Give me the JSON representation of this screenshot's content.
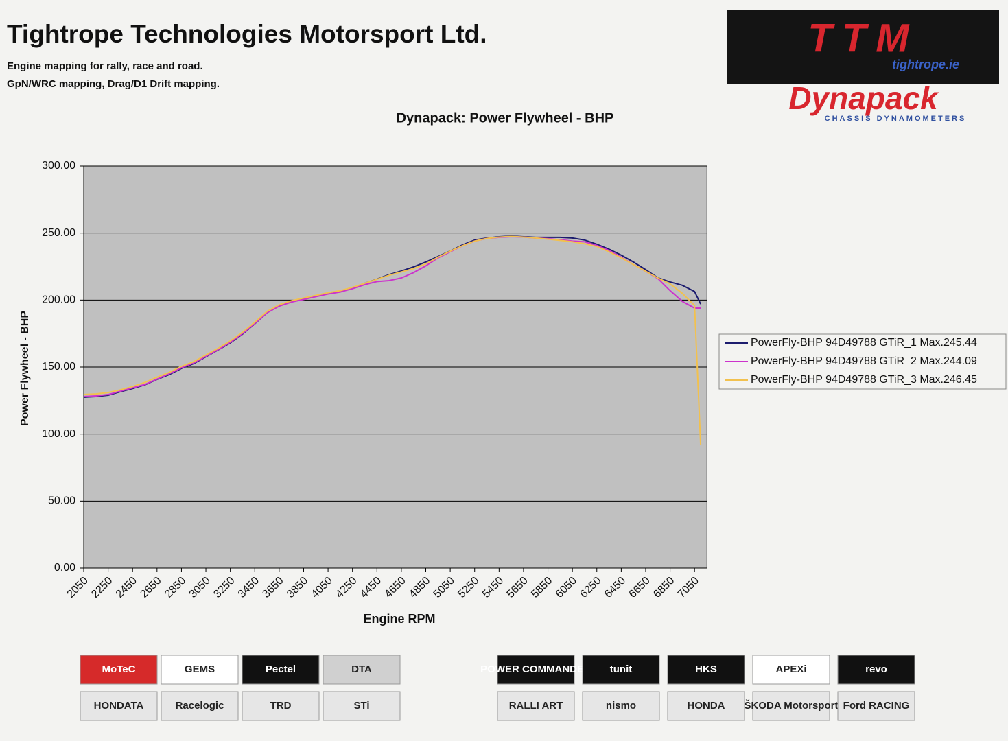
{
  "header": {
    "title": "Tightrope Technologies Motorsport Ltd.",
    "lines": [
      "Engine mapping for rally, race and road.",
      "GpN/WRC mapping, Drag/D1 Drift mapping."
    ]
  },
  "logo": {
    "brand": "TTM",
    "site": "tightrope.ie",
    "maker": "Dynapack",
    "tagline": "CHASSIS DYNAMOMETERS"
  },
  "sponsors": [
    [
      "MoTeC",
      "GEMS",
      "Pectel",
      "DTA",
      "POWER COMMANDER",
      "tunit",
      "HKS",
      "APEXi",
      "revo"
    ],
    [
      "HONDATA",
      "Racelogic",
      "TRD",
      "STi",
      "RALLI ART",
      "nismo",
      "HONDA",
      "ŠKODA Motorsport",
      "Ford RACING"
    ]
  ],
  "chart_data": {
    "type": "line",
    "title": "Dynapack: Power Flywheel - BHP",
    "x_label": "Engine RPM",
    "y_label": "Power Flywheel - BHP",
    "x": [
      2050,
      2150,
      2250,
      2350,
      2450,
      2550,
      2650,
      2750,
      2850,
      2950,
      3050,
      3150,
      3250,
      3350,
      3450,
      3550,
      3650,
      3750,
      3850,
      3950,
      4050,
      4150,
      4250,
      4350,
      4450,
      4550,
      4650,
      4750,
      4850,
      4950,
      5050,
      5150,
      5250,
      5350,
      5450,
      5550,
      5650,
      5750,
      5850,
      5950,
      6050,
      6150,
      6250,
      6350,
      6450,
      6550,
      6650,
      6750,
      6850,
      6950,
      7050,
      7100
    ],
    "series": [
      {
        "name": "PowerFly-BHP 94D49788 GTiR_1 Max.245.44",
        "color": "#1c1c6e",
        "values": [
          127.5,
          128,
          129,
          131.6,
          134,
          136.7,
          140.8,
          144.4,
          149,
          152.6,
          157.7,
          162.8,
          168,
          174.6,
          182.3,
          190.5,
          195.6,
          198.7,
          200.7,
          202.8,
          204.8,
          206.4,
          209,
          212.5,
          215.6,
          219,
          221.7,
          224.8,
          228.4,
          232.5,
          236.6,
          241.2,
          244.8,
          246.3,
          247.3,
          247.8,
          247.3,
          246.8,
          246.8,
          246.8,
          246.3,
          244.8,
          241.7,
          238,
          233.5,
          228.4,
          222.7,
          216.6,
          213.5,
          211,
          206.4,
          197
        ]
      },
      {
        "name": "PowerFly-BHP 94D49788 GTiR_2 Max.244.09",
        "color": "#cc33cc",
        "values": [
          128,
          128.5,
          129.5,
          132,
          134.5,
          137,
          141,
          145,
          149.5,
          153,
          158,
          163,
          168.5,
          175,
          182.5,
          190.5,
          195.5,
          198.5,
          200.5,
          202.5,
          204.5,
          206,
          208.5,
          211.5,
          213.8,
          214.5,
          216.5,
          220.5,
          225.5,
          231.5,
          236,
          240.5,
          244,
          246,
          246.8,
          247.3,
          247,
          246.3,
          245.8,
          245,
          244,
          243.5,
          240.8,
          237,
          232,
          226.5,
          221.5,
          216,
          207,
          199,
          194,
          194
        ]
      },
      {
        "name": "PowerFly-BHP 94D49788 GTiR_3 Max.246.45",
        "color": "#f2c14e",
        "values": [
          129.5,
          130,
          131,
          133,
          135.5,
          138.5,
          142.5,
          146,
          150.5,
          154,
          159,
          164,
          169.5,
          176,
          183.5,
          191.5,
          196.5,
          199.5,
          201.5,
          203.5,
          205.5,
          207,
          209.5,
          212.5,
          215.5,
          218.5,
          221,
          223.5,
          227,
          232,
          236.5,
          240.5,
          244,
          246,
          247,
          247.5,
          247,
          246.3,
          245.5,
          244.5,
          243.5,
          242,
          240,
          236,
          231.5,
          226.5,
          221.5,
          216.5,
          212,
          205,
          196,
          92
        ]
      }
    ],
    "xlim": [
      2050,
      7150
    ],
    "ylim": [
      0,
      300
    ],
    "xticks": [
      2050,
      2250,
      2450,
      2650,
      2850,
      3050,
      3250,
      3450,
      3650,
      3850,
      4050,
      4250,
      4450,
      4650,
      4850,
      5050,
      5250,
      5450,
      5650,
      5850,
      6050,
      6250,
      6450,
      6650,
      6850,
      7050
    ],
    "yticks": [
      {
        "value": 0,
        "label": "0.00"
      },
      {
        "value": 50,
        "label": "50.00"
      },
      {
        "value": 100,
        "label": "100.00"
      },
      {
        "value": 150,
        "label": "150.00"
      },
      {
        "value": 200,
        "label": "200.00"
      },
      {
        "value": 250,
        "label": "250.00"
      },
      {
        "value": 300,
        "label": "300.00"
      }
    ],
    "grid": true,
    "legend": "right"
  }
}
